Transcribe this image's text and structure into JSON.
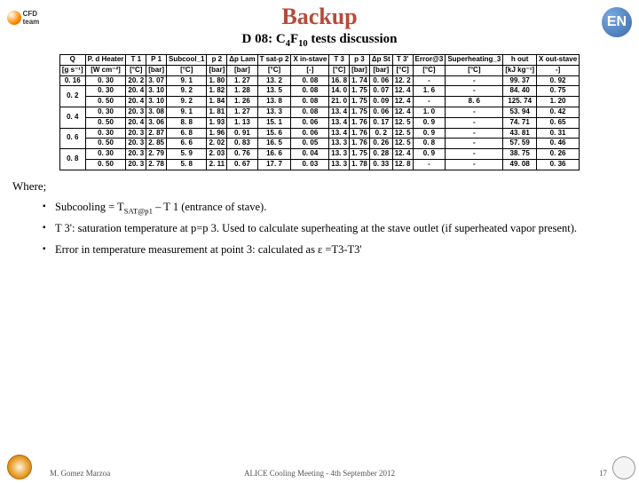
{
  "title": "Backup",
  "subtitle": "D 08: C₄F₁₀ tests discussion",
  "logo_left": "CFD team",
  "logo_right": "EN",
  "table": {
    "line1": [
      "Q",
      "P. d Heater",
      "T 1",
      "P 1",
      "Subcool_1",
      "p 2",
      "Δp Lam",
      "T sat-p 2",
      "X in-stave",
      "T 3",
      "p 3",
      "Δp St",
      "T 3'",
      "Error@3",
      "Superheating_3",
      "h out",
      "X out-stave"
    ],
    "line2": [
      "[g s⁻¹]",
      "[W cm⁻²]",
      "[°C]",
      "[bar]",
      "[°C]",
      "[bar]",
      "[bar]",
      "[°C]",
      "[-]",
      "[°C]",
      "[bar]",
      "[bar]",
      "[°C]",
      "[°C]",
      "[°C]",
      "[kJ kg⁻¹]",
      "-]"
    ],
    "groups": [
      {
        "q": "0. 16",
        "rows": [
          [
            "0. 30",
            "20. 2",
            "3. 07",
            "9. 1",
            "1. 80",
            "1. 27",
            "13. 2",
            "0. 08",
            "16. 8",
            "1. 74",
            "0. 06",
            "12. 2",
            "-",
            "-",
            "99. 37",
            "0. 92"
          ]
        ]
      },
      {
        "q": "0. 2",
        "rows": [
          [
            "0. 30",
            "20. 4",
            "3. 10",
            "9. 2",
            "1. 82",
            "1. 28",
            "13. 5",
            "0. 08",
            "14. 0",
            "1. 75",
            "0. 07",
            "12. 4",
            "1. 6",
            "-",
            "84. 40",
            "0. 75"
          ],
          [
            "0. 50",
            "20. 4",
            "3. 10",
            "9. 2",
            "1. 84",
            "1. 26",
            "13. 8",
            "0. 08",
            "21. 0",
            "1. 75",
            "0. 09",
            "12. 4",
            "-",
            "8. 6",
            "125. 74",
            "1. 20"
          ]
        ]
      },
      {
        "q": "0. 4",
        "rows": [
          [
            "0. 30",
            "20. 3",
            "3. 08",
            "9. 1",
            "1. 81",
            "1. 27",
            "13. 3",
            "0. 08",
            "13. 4",
            "1. 75",
            "0. 06",
            "12. 4",
            "1. 0",
            "-",
            "53. 94",
            "0. 42"
          ],
          [
            "0. 50",
            "20. 4",
            "3. 06",
            "8. 8",
            "1. 93",
            "1. 13",
            "15. 1",
            "0. 06",
            "13. 4",
            "1. 76",
            "0. 17",
            "12. 5",
            "0. 9",
            "-",
            "74. 71",
            "0. 65"
          ]
        ]
      },
      {
        "q": "0. 6",
        "rows": [
          [
            "0. 30",
            "20. 3",
            "2. 87",
            "6. 8",
            "1. 96",
            "0. 91",
            "15. 6",
            "0. 06",
            "13. 4",
            "1. 76",
            "0. 2",
            "12. 5",
            "0. 9",
            "-",
            "43. 81",
            "0. 31"
          ],
          [
            "0. 50",
            "20. 3",
            "2. 85",
            "6. 6",
            "2. 02",
            "0. 83",
            "16. 5",
            "0. 05",
            "13. 3",
            "1. 76",
            "0. 26",
            "12. 5",
            "0. 8",
            "-",
            "57. 59",
            "0. 46"
          ]
        ]
      },
      {
        "q": "0. 8",
        "rows": [
          [
            "0. 30",
            "20. 3",
            "2. 79",
            "5. 9",
            "2. 03",
            "0. 76",
            "16. 6",
            "0. 04",
            "13. 3",
            "1. 75",
            "0. 28",
            "12. 4",
            "0. 9",
            "-",
            "38. 75",
            "0. 26"
          ],
          [
            "0. 50",
            "20. 3",
            "2. 78",
            "5. 8",
            "2. 11",
            "0. 67",
            "17. 7",
            "0. 03",
            "13. 3",
            "1. 78",
            "0. 33",
            "12. 8",
            "-",
            "-",
            "49. 08",
            "0. 36"
          ]
        ]
      }
    ]
  },
  "where": "Where;",
  "bullets": [
    "Subcooling = T<sub>SAT@p1</sub> – T 1 (entrance of stave).",
    "T 3': saturation temperature at p=p 3. Used to calculate superheating at the stave outlet (if superheated vapor present).",
    "Error in temperature measurement at point 3: calculated as ε =T3-T3'"
  ],
  "footer": {
    "author": "M. Gomez Marzoa",
    "meeting": "ALICE Cooling Meeting - 4th September 2012",
    "page": "17"
  }
}
